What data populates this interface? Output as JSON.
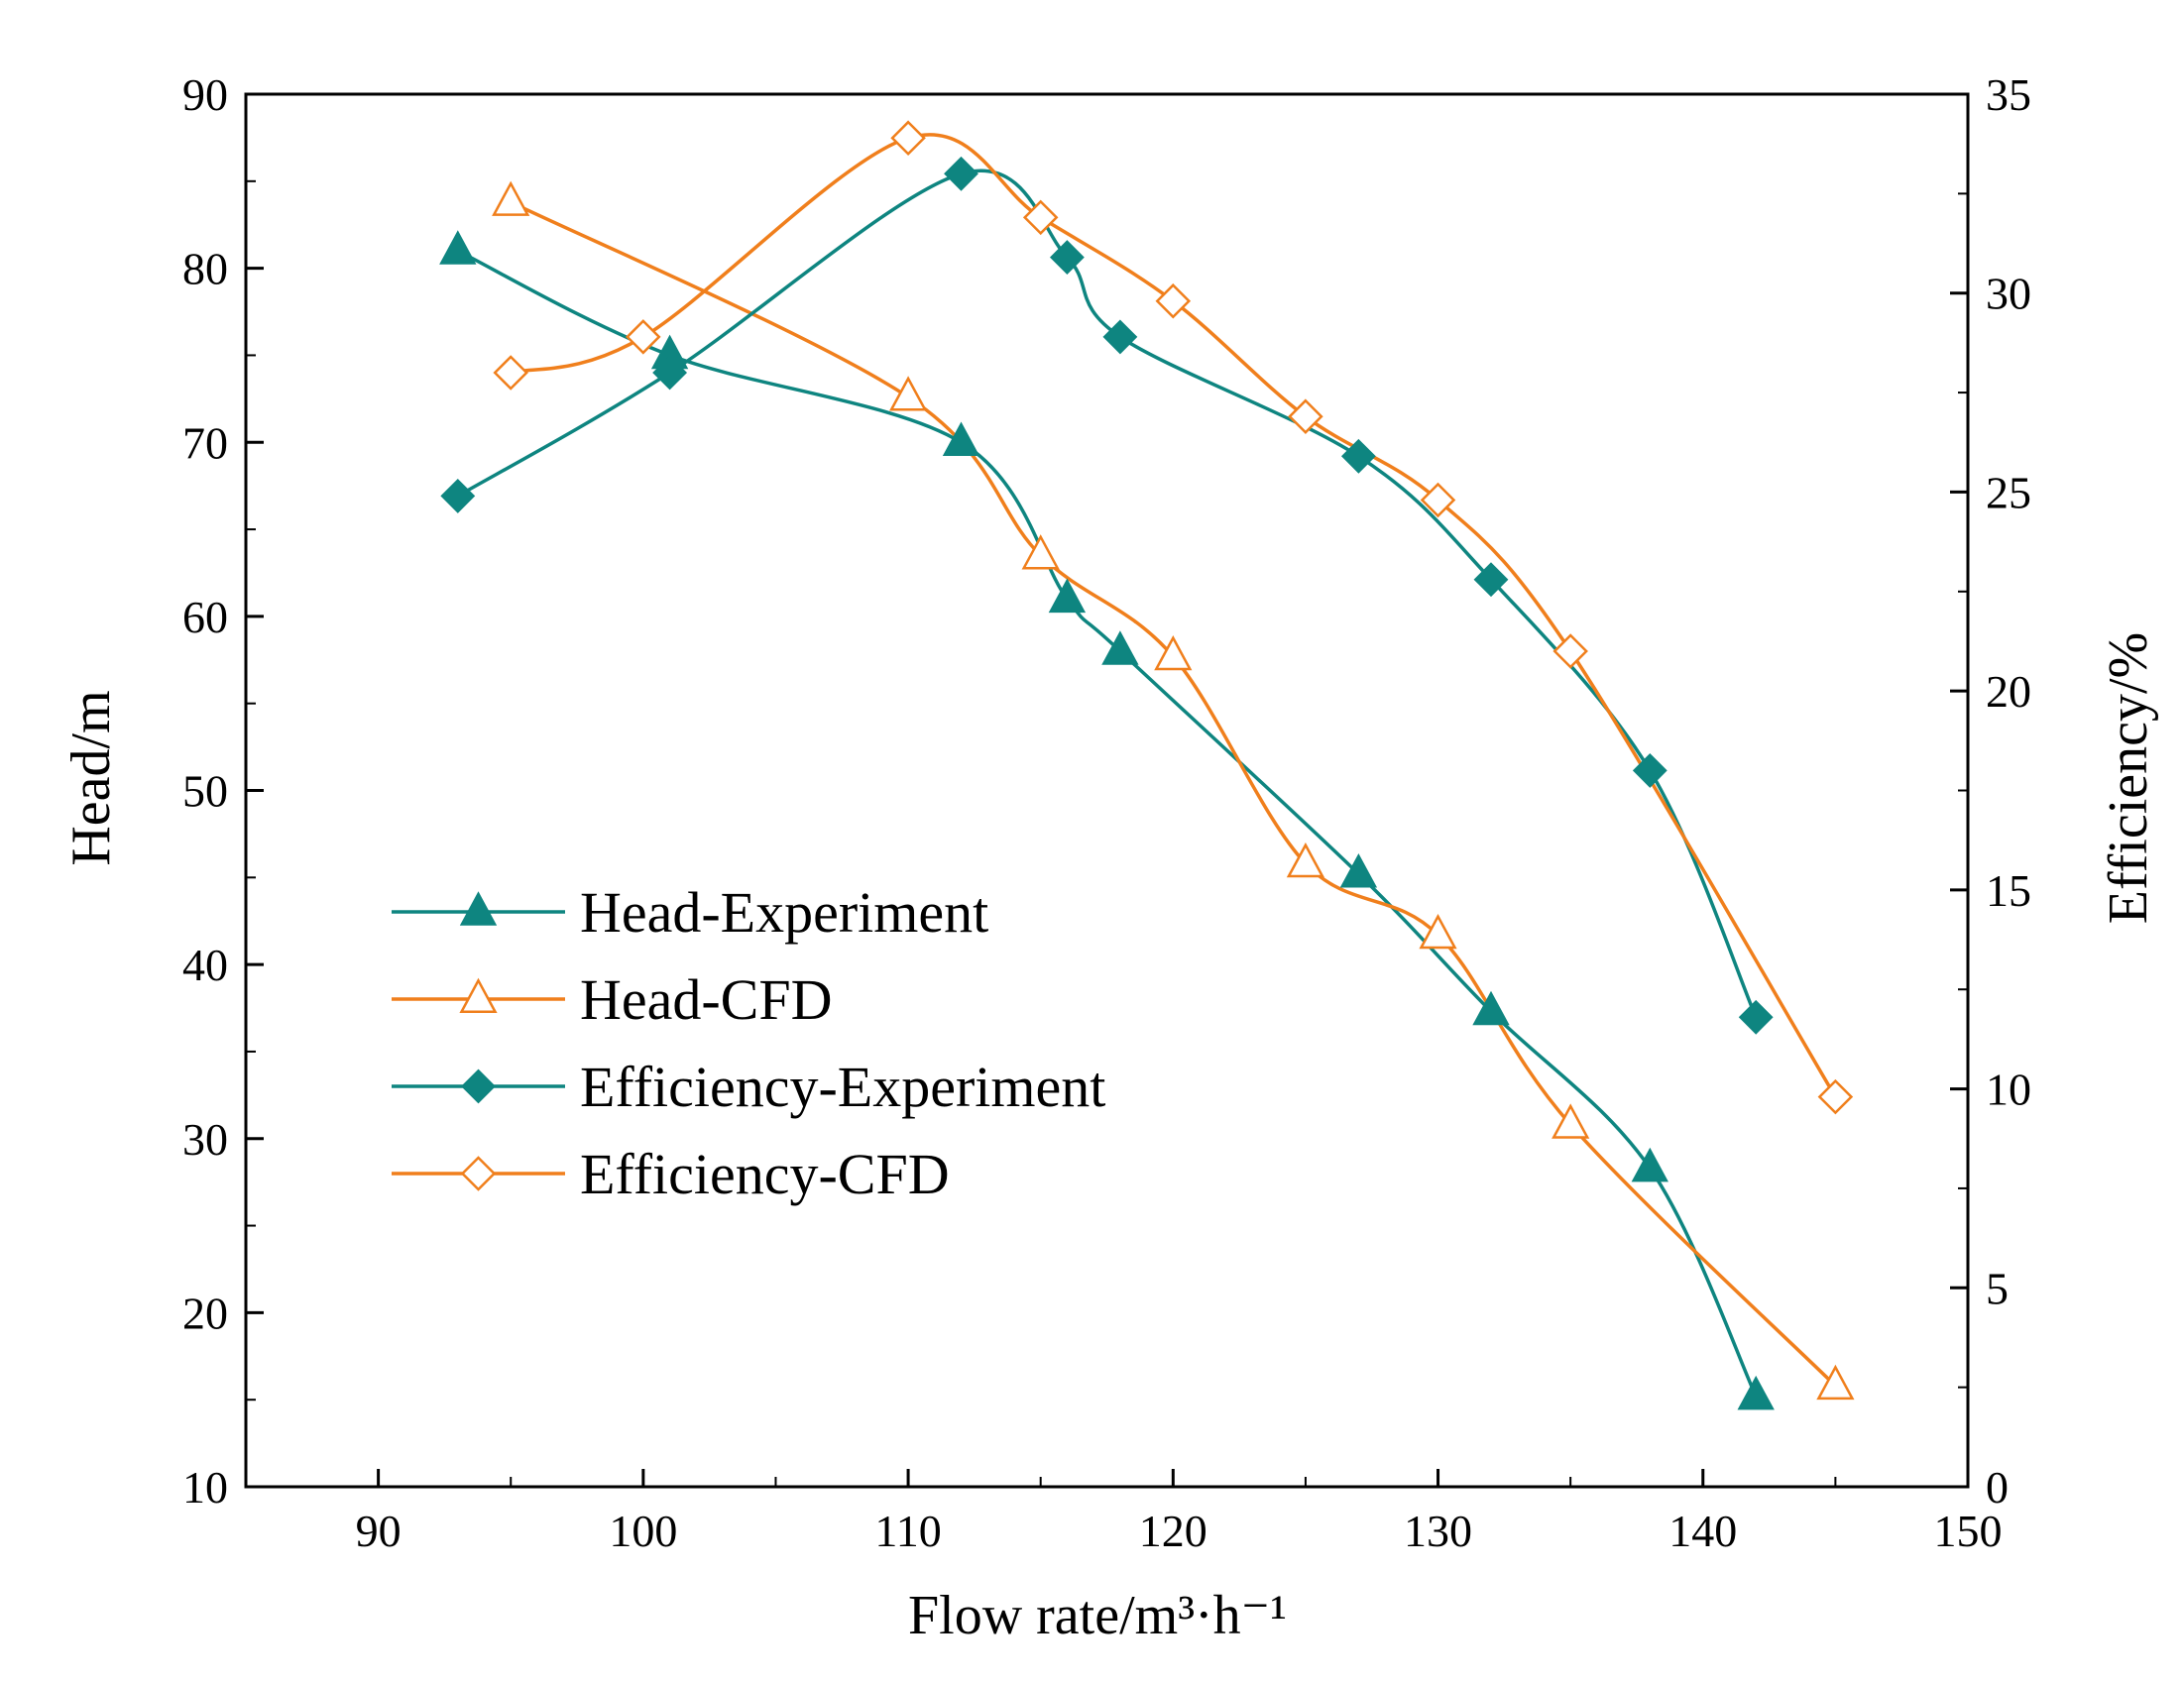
{
  "chart_data": {
    "type": "line",
    "title": "",
    "xlabel": "Flow rate/m³·h⁻¹",
    "ylabel_left": "Head/m",
    "ylabel_right": "Efficiency/%",
    "xlim": [
      85,
      150
    ],
    "ylim_left": [
      10,
      90
    ],
    "ylim_right": [
      0,
      35
    ],
    "x_ticks": [
      90,
      100,
      110,
      120,
      130,
      140,
      150
    ],
    "y_left_ticks": [
      10,
      20,
      30,
      40,
      50,
      60,
      70,
      80,
      90
    ],
    "y_right_ticks": [
      0,
      5,
      10,
      15,
      20,
      25,
      30,
      35
    ],
    "grid": false,
    "legend_position": "center-left",
    "colors": {
      "experiment": "#0e8580",
      "cfd": "#f07f1c"
    },
    "series": [
      {
        "name": "Head-Experiment",
        "axis": "left",
        "marker": "triangle-filled",
        "color": "#0e8580",
        "x": [
          93,
          101,
          112,
          116,
          118,
          127,
          132,
          138,
          142
        ],
        "y": [
          81.0,
          75.0,
          70.0,
          61.0,
          58.0,
          45.2,
          37.3,
          28.3,
          15.2
        ]
      },
      {
        "name": "Head-CFD",
        "axis": "left",
        "marker": "triangle-open",
        "color": "#f07f1c",
        "x": [
          95,
          110,
          115,
          120,
          125,
          130,
          135,
          145
        ],
        "y": [
          83.8,
          72.6,
          63.5,
          57.7,
          45.8,
          41.7,
          30.8,
          15.8
        ]
      },
      {
        "name": "Efficiency-Experiment",
        "axis": "right",
        "marker": "diamond-filled",
        "color": "#0e8580",
        "x": [
          93,
          101,
          112,
          116,
          118,
          127,
          132,
          138,
          142
        ],
        "y": [
          24.9,
          28.0,
          33.0,
          30.9,
          28.9,
          25.9,
          22.8,
          18.0,
          11.8
        ]
      },
      {
        "name": "Efficiency-CFD",
        "axis": "right",
        "marker": "diamond-open",
        "color": "#f07f1c",
        "x": [
          95,
          100,
          110,
          115,
          120,
          125,
          130,
          135,
          145
        ],
        "y": [
          28.0,
          28.9,
          33.9,
          31.9,
          29.8,
          26.9,
          24.8,
          21.0,
          9.8
        ]
      }
    ]
  }
}
